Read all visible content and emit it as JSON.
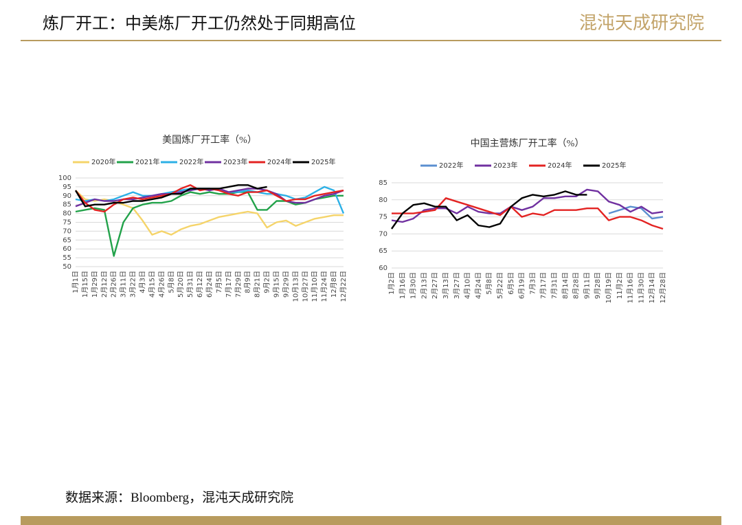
{
  "header": {
    "title": "炼厂开工：中美炼厂开工仍然处于同期高位",
    "logo": "混沌天成研究院"
  },
  "footer": {
    "source": "数据来源：Bloomberg，混沌天成研究院"
  },
  "chart_data": [
    {
      "type": "line",
      "title": "美国炼厂开工率（%）",
      "categories": [
        "1月1日",
        "1月15日",
        "1月29日",
        "2月12日",
        "2月26日",
        "3月11日",
        "3月22日",
        "4月3日",
        "4月15日",
        "4月26日",
        "5月8日",
        "5月20日",
        "5月31日",
        "6月12日",
        "6月24日",
        "7月5日",
        "7月17日",
        "7月29日",
        "8月9日",
        "8月21日",
        "9月2日",
        "9月15日",
        "9月29日",
        "10月13日",
        "10月27日",
        "11月10日",
        "11月24日",
        "12月8日",
        "12月22日"
      ],
      "ylim": [
        50,
        100
      ],
      "yticks": [
        50,
        55,
        60,
        65,
        70,
        75,
        80,
        85,
        90,
        95,
        100
      ],
      "grid": true,
      "legend": "top",
      "series": [
        {
          "name": "2020年",
          "color": "#f5d46a",
          "values": [
            93,
            88,
            87,
            88,
            87,
            85,
            83,
            76,
            68,
            70,
            68,
            71,
            73,
            74,
            76,
            78,
            79,
            80,
            81,
            80,
            72,
            75,
            76,
            73,
            75,
            77,
            78,
            79,
            79
          ]
        },
        {
          "name": "2021年",
          "color": "#22a24a",
          "values": [
            81,
            82,
            83,
            82,
            56,
            75,
            83,
            85,
            86,
            86,
            87,
            90,
            92,
            91,
            92,
            91,
            91,
            92,
            92,
            82,
            82,
            87,
            87,
            85,
            86,
            88,
            89,
            90,
            90
          ]
        },
        {
          "name": "2022年",
          "color": "#2cb0e6",
          "values": [
            88,
            87,
            88,
            87,
            88,
            90,
            92,
            90,
            90,
            91,
            92,
            93,
            94,
            94,
            94,
            93,
            92,
            92,
            93,
            92,
            91,
            91,
            90,
            88,
            89,
            92,
            95,
            93,
            80
          ]
        },
        {
          "name": "2023年",
          "color": "#7030a0",
          "values": [
            84,
            86,
            88,
            87,
            87,
            88,
            88,
            89,
            90,
            91,
            91,
            92,
            93,
            94,
            93,
            94,
            92,
            93,
            94,
            94,
            93,
            91,
            87,
            86,
            86,
            88,
            90,
            91,
            93
          ]
        },
        {
          "name": "2024年",
          "color": "#e32322",
          "values": [
            93,
            86,
            82,
            81,
            85,
            88,
            89,
            88,
            89,
            90,
            91,
            94,
            96,
            93,
            94,
            93,
            91,
            90,
            92,
            92,
            93,
            90,
            87,
            88,
            88,
            90,
            91,
            92,
            93
          ]
        },
        {
          "name": "2025年",
          "color": "#000000",
          "values": [
            93,
            84,
            85,
            85,
            86,
            86,
            87,
            87,
            88,
            89,
            91,
            91,
            94,
            94,
            94,
            94,
            95,
            96,
            96,
            94,
            95,
            null,
            null,
            null,
            null,
            null,
            null,
            null,
            null
          ]
        }
      ]
    },
    {
      "type": "line",
      "title": "中国主营炼厂开工率（%）",
      "categories": [
        "1月2日",
        "1月16日",
        "1月30日",
        "2月13日",
        "2月27日",
        "3月13日",
        "3月27日",
        "4月10日",
        "4月24日",
        "5月8日",
        "5月22日",
        "6月5日",
        "6月19日",
        "7月3日",
        "7月17日",
        "7月31日",
        "8月14日",
        "8月28日",
        "9月11日",
        "9月28日",
        "10月19日",
        "11月2日",
        "11月16日",
        "11月30日",
        "12月14日",
        "12月28日"
      ],
      "ylim": [
        60,
        85
      ],
      "yticks": [
        60,
        65,
        70,
        75,
        80,
        85
      ],
      "grid": true,
      "legend": "top",
      "series": [
        {
          "name": "2022年",
          "color": "#5b8fd0",
          "values": [
            null,
            null,
            null,
            null,
            null,
            null,
            null,
            null,
            null,
            null,
            null,
            null,
            null,
            null,
            null,
            null,
            null,
            null,
            null,
            null,
            76,
            77,
            78,
            77.5,
            74.5,
            75
          ]
        },
        {
          "name": "2023年",
          "color": "#7030a0",
          "values": [
            74,
            73.5,
            74.5,
            77,
            77.5,
            77.5,
            76,
            78,
            76.5,
            76,
            76,
            78,
            77,
            78,
            80.5,
            80.5,
            81,
            81,
            83,
            82.5,
            79.5,
            78.5,
            76.5,
            78,
            76,
            76.5
          ]
        },
        {
          "name": "2024年",
          "color": "#e32322",
          "values": [
            76,
            76,
            76,
            76.5,
            77,
            80.5,
            79.5,
            78.5,
            77.5,
            76.5,
            75.5,
            78,
            75,
            76,
            75.5,
            77,
            77,
            77,
            77.5,
            77.5,
            74,
            75,
            75,
            74,
            72.5,
            71.5
          ]
        },
        {
          "name": "2025年",
          "color": "#000000",
          "values": [
            71.5,
            76,
            78.5,
            79,
            78,
            78,
            74,
            75.5,
            72.5,
            72,
            73,
            78,
            80.5,
            81.5,
            81,
            81.5,
            82.5,
            81.5,
            81.5,
            null,
            null,
            null,
            null,
            null,
            null,
            null
          ]
        }
      ]
    }
  ]
}
